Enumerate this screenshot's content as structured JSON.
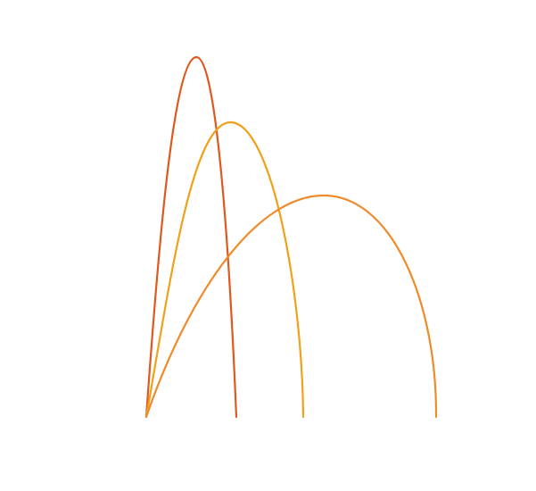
{
  "diagram": {
    "background": "#ffffff",
    "arcs": [
      {
        "id": "arc-narrow",
        "color": "#e0581e"
      },
      {
        "id": "arc-medium",
        "color": "#f0a11a"
      },
      {
        "id": "arc-wide",
        "color": "#ef8b2b"
      }
    ]
  }
}
